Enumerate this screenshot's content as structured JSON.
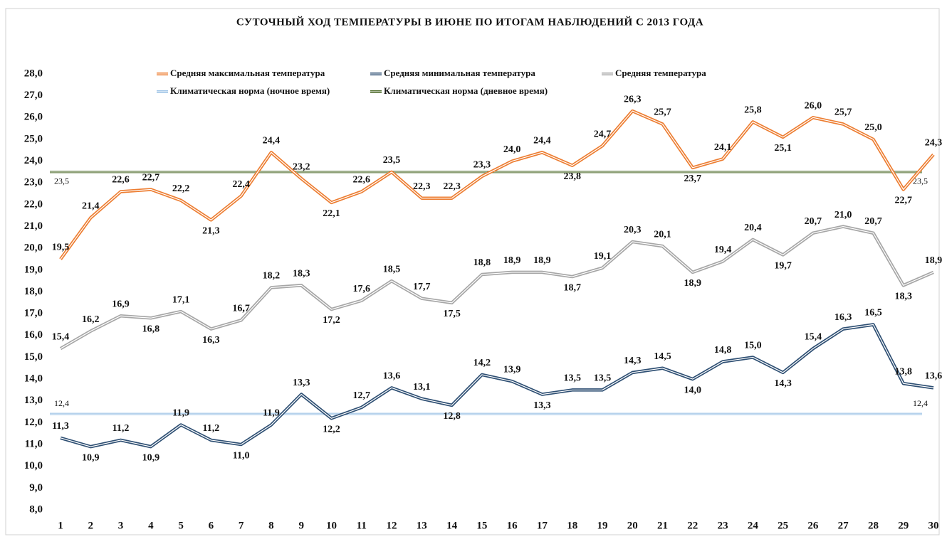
{
  "chart_data": {
    "type": "line",
    "title": "СУТОЧНЫЙ ХОД ТЕМПЕРАТУРЫ  В ИЮНЕ  ПО ИТОГАМ  НАБЛЮДЕНИЙ  С 2013 ГОДА",
    "categories": [
      1,
      2,
      3,
      4,
      5,
      6,
      7,
      8,
      9,
      10,
      11,
      12,
      13,
      14,
      15,
      16,
      17,
      18,
      19,
      20,
      21,
      22,
      23,
      24,
      25,
      26,
      27,
      28,
      29,
      30
    ],
    "ylim": [
      8,
      28
    ],
    "yticks": [
      {
        "value": 8,
        "label": "8,0"
      },
      {
        "value": 9,
        "label": "9,0"
      },
      {
        "value": 10,
        "label": "10,0"
      },
      {
        "value": 11,
        "label": "11,0"
      },
      {
        "value": 12,
        "label": "12,0"
      },
      {
        "value": 13,
        "label": "13,0"
      },
      {
        "value": 14,
        "label": "14,0"
      },
      {
        "value": 15,
        "label": "15,0"
      },
      {
        "value": 16,
        "label": "16,0"
      },
      {
        "value": 17,
        "label": "17,0"
      },
      {
        "value": 18,
        "label": "18,0"
      },
      {
        "value": 19,
        "label": "19,0"
      },
      {
        "value": 20,
        "label": "20,0"
      },
      {
        "value": 21,
        "label": "21,0"
      },
      {
        "value": 22,
        "label": "22,0"
      },
      {
        "value": 23,
        "label": "23,0"
      },
      {
        "value": 24,
        "label": "24,0"
      },
      {
        "value": 25,
        "label": "25,0"
      },
      {
        "value": 26,
        "label": "26,0"
      },
      {
        "value": 27,
        "label": "27,0"
      },
      {
        "value": 28,
        "label": "28,0"
      }
    ],
    "series": [
      {
        "name": "Средняя максимальная температура",
        "color": "#ed7d31",
        "values": [
          19.5,
          21.4,
          22.6,
          22.7,
          22.2,
          21.3,
          22.4,
          24.4,
          23.2,
          22.1,
          22.6,
          23.5,
          22.3,
          22.3,
          23.3,
          24.0,
          24.4,
          23.8,
          24.7,
          26.3,
          25.7,
          23.7,
          24.1,
          25.8,
          25.1,
          26.0,
          25.7,
          25.0,
          22.7,
          24.3
        ],
        "value_labels": [
          "19,5",
          "21,4",
          "22,6",
          "22,7",
          "22,2",
          "21,3",
          "22,4",
          "24,4",
          "23,2",
          "22,1",
          "22,6",
          "23,5",
          "22,3",
          "22,3",
          "23,3",
          "24,0",
          "24,4",
          "23,8",
          "24,7",
          "26,3",
          "25,7",
          "23,7",
          "24,1",
          "25,8",
          "25,1",
          "26,0",
          "25,7",
          "25,0",
          "22,7",
          "24,3"
        ]
      },
      {
        "name": "Средняя минимальная температура",
        "color": "#2e4f73",
        "values": [
          11.3,
          10.9,
          11.2,
          10.9,
          11.9,
          11.2,
          11.0,
          11.9,
          13.3,
          12.2,
          12.7,
          13.6,
          13.1,
          12.8,
          14.2,
          13.9,
          13.3,
          13.5,
          13.5,
          14.3,
          14.5,
          14.0,
          14.8,
          15.0,
          14.3,
          15.4,
          16.3,
          16.5,
          13.8,
          13.6
        ],
        "value_labels": [
          "11,3",
          "10,9",
          "11,2",
          "10,9",
          "11,9",
          "11,2",
          "11,0",
          "11,9",
          "13,3",
          "12,2",
          "12,7",
          "13,6",
          "13,1",
          "12,8",
          "14,2",
          "13,9",
          "13,3",
          "13,5",
          "13,5",
          "14,3",
          "14,5",
          "14,0",
          "14,8",
          "15,0",
          "14,3",
          "15,4",
          "16,3",
          "16,5",
          "13,8",
          "13,6"
        ]
      },
      {
        "name": "Средняя температура",
        "color": "#a6a6a6",
        "values": [
          15.4,
          16.2,
          16.9,
          16.8,
          17.1,
          16.3,
          16.7,
          18.2,
          18.3,
          17.2,
          17.6,
          18.5,
          17.7,
          17.5,
          18.8,
          18.9,
          18.9,
          18.7,
          19.1,
          20.3,
          20.1,
          18.9,
          19.4,
          20.4,
          19.7,
          20.7,
          21.0,
          20.7,
          18.3,
          18.9
        ],
        "value_labels": [
          "15,4",
          "16,2",
          "16,9",
          "16,8",
          "17,1",
          "16,3",
          "16,7",
          "18,2",
          "18,3",
          "17,2",
          "17,6",
          "18,5",
          "17,7",
          "17,5",
          "18,8",
          "18,9",
          "18,9",
          "18,7",
          "19,1",
          "20,3",
          "20,1",
          "18,9",
          "19,4",
          "20,4",
          "19,7",
          "20,7",
          "21,0",
          "20,7",
          "18,3",
          "18,9"
        ]
      }
    ],
    "norms": [
      {
        "name": "Климатическая норма (ночное время)",
        "color": "#9dc3e6",
        "value": 12.4,
        "value_label": "12,4"
      },
      {
        "name": "Климатическая норма (дневное время)",
        "color": "#4e6b2a",
        "value": 23.5,
        "value_label": "23,5"
      }
    ]
  }
}
